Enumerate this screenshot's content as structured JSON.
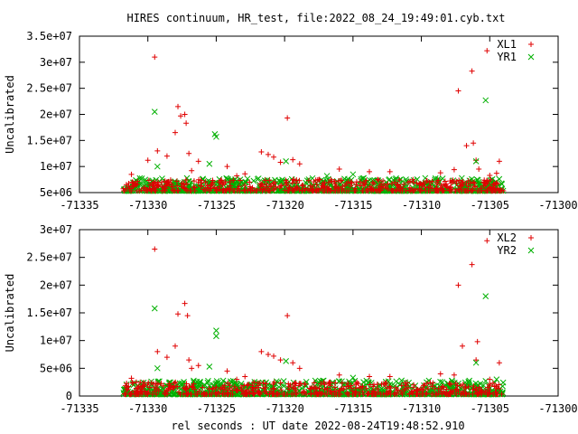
{
  "title": "HIRES continuum, HR_test, file:2022_08_24_19:49:01.cyb.txt",
  "xlabel": "rel seconds : UT date 2022-08-24T19:48:52.910",
  "colors": {
    "red": "#e00000",
    "green": "#00b000"
  },
  "chart_data": [
    {
      "type": "scatter",
      "ylabel": "Uncalibrated",
      "xlim": [
        -71335,
        -71300
      ],
      "ylim": [
        5000000,
        35000000
      ],
      "xticks": [
        -71335,
        -71330,
        -71325,
        -71320,
        -71315,
        -71310,
        -71305,
        -71300
      ],
      "xtick_labels": [
        "-71335",
        "-71330",
        "-71325",
        "-71320",
        "-71315",
        "-71310",
        "-71305",
        "-71300"
      ],
      "yticks": [
        5000000,
        10000000,
        15000000,
        20000000,
        25000000,
        30000000,
        35000000
      ],
      "ytick_labels": [
        "5e+06",
        "1e+07",
        "1.5e+07",
        "2e+07",
        "2.5e+07",
        "3e+07",
        "3.5e+07"
      ],
      "series": [
        {
          "name": "XL1",
          "marker": "plus",
          "color": "#e00000",
          "x": [
            -71329.5,
            -71327.8,
            -71327.6,
            -71327.3,
            -71327.2,
            -71319.8,
            -71307.3,
            -71306.3,
            -71305.2,
            -71306.2,
            -71306.7,
            -71329.3,
            -71330.0,
            -71328.6,
            -71328.0,
            -71327.0,
            -71326.3,
            -71321.7,
            -71321.2,
            -71320.8,
            -71320.3,
            -71319.4,
            -71318.9,
            -71324.2,
            -71316.0,
            -71313.8,
            -71312.3,
            -71306.0,
            -71305.8,
            -71304.3,
            -71331.2,
            -71326.8,
            -71323.5,
            -71322.9,
            -71308.6,
            -71307.6,
            -71305.0,
            -71304.5
          ],
          "y": [
            31000000,
            21500000,
            19700000,
            20000000,
            18300000,
            19300000,
            24500000,
            28300000,
            32200000,
            14500000,
            14000000,
            13000000,
            11200000,
            12000000,
            16500000,
            12500000,
            11000000,
            12800000,
            12300000,
            11800000,
            10800000,
            11300000,
            10500000,
            10000000,
            9500000,
            9000000,
            9000000,
            11200000,
            9500000,
            11000000,
            8500000,
            9200000,
            8200000,
            8600000,
            8800000,
            9400000,
            8300000,
            8700000
          ]
        },
        {
          "name": "YR1",
          "marker": "cross",
          "color": "#00b000",
          "x": [
            -71329.5,
            -71325.1,
            -71325.0,
            -71305.3,
            -71306.0,
            -71319.9,
            -71329.3,
            -71325.5,
            -71315.0,
            -71316.9
          ],
          "y": [
            20500000,
            16200000,
            15700000,
            22700000,
            11000000,
            11000000,
            10000000,
            10500000,
            8500000,
            8200000
          ]
        }
      ],
      "baseline": {
        "xrange": [
          -71331.8,
          -71304.0
        ],
        "ymin": 5000000,
        "red_max": 7500000,
        "green_max": 7800000
      }
    },
    {
      "type": "scatter",
      "ylabel": "Uncalibrated",
      "xlim": [
        -71335,
        -71300
      ],
      "ylim": [
        0,
        30000000
      ],
      "xticks": [
        -71335,
        -71330,
        -71325,
        -71320,
        -71315,
        -71310,
        -71305,
        -71300
      ],
      "xtick_labels": [
        "-71335",
        "-71330",
        "-71325",
        "-71320",
        "-71315",
        "-71310",
        "-71305",
        "-71300"
      ],
      "yticks": [
        0,
        5000000,
        10000000,
        15000000,
        20000000,
        25000000,
        30000000
      ],
      "ytick_labels": [
        "0",
        "5e+06",
        "1e+07",
        "1.5e+07",
        "2e+07",
        "2.5e+07",
        "3e+07"
      ],
      "series": [
        {
          "name": "XL2",
          "marker": "plus",
          "color": "#e00000",
          "x": [
            -71329.5,
            -71327.3,
            -71327.8,
            -71327.1,
            -71319.8,
            -71307.3,
            -71306.3,
            -71305.2,
            -71305.9,
            -71307.0,
            -71329.3,
            -71328.6,
            -71328.0,
            -71327.0,
            -71326.3,
            -71321.7,
            -71321.2,
            -71320.8,
            -71320.3,
            -71319.4,
            -71318.9,
            -71324.2,
            -71316.0,
            -71313.8,
            -71312.3,
            -71306.0,
            -71304.3,
            -71331.2,
            -71326.8,
            -71323.5,
            -71322.9,
            -71308.6,
            -71307.6,
            -71305.0
          ],
          "y": [
            26500000,
            16700000,
            14800000,
            14500000,
            14500000,
            20000000,
            23700000,
            28000000,
            9800000,
            9000000,
            8000000,
            7000000,
            9000000,
            6500000,
            5500000,
            8000000,
            7500000,
            7200000,
            6500000,
            6000000,
            5000000,
            4500000,
            3800000,
            3500000,
            3500000,
            6500000,
            6000000,
            3200000,
            5000000,
            3000000,
            3500000,
            4000000,
            3800000,
            3000000
          ]
        },
        {
          "name": "YR2",
          "marker": "cross",
          "color": "#00b000",
          "x": [
            -71329.5,
            -71325.0,
            -71325.0,
            -71305.3,
            -71329.3,
            -71325.5,
            -71319.9,
            -71315.0,
            -71306.0,
            -71304.5
          ],
          "y": [
            15800000,
            11800000,
            10800000,
            18000000,
            5000000,
            5300000,
            6300000,
            3300000,
            6000000,
            3000000
          ]
        }
      ],
      "baseline": {
        "xrange": [
          -71331.8,
          -71304.0
        ],
        "ymin": 0,
        "red_max": 2500000,
        "green_max": 2800000
      }
    }
  ]
}
